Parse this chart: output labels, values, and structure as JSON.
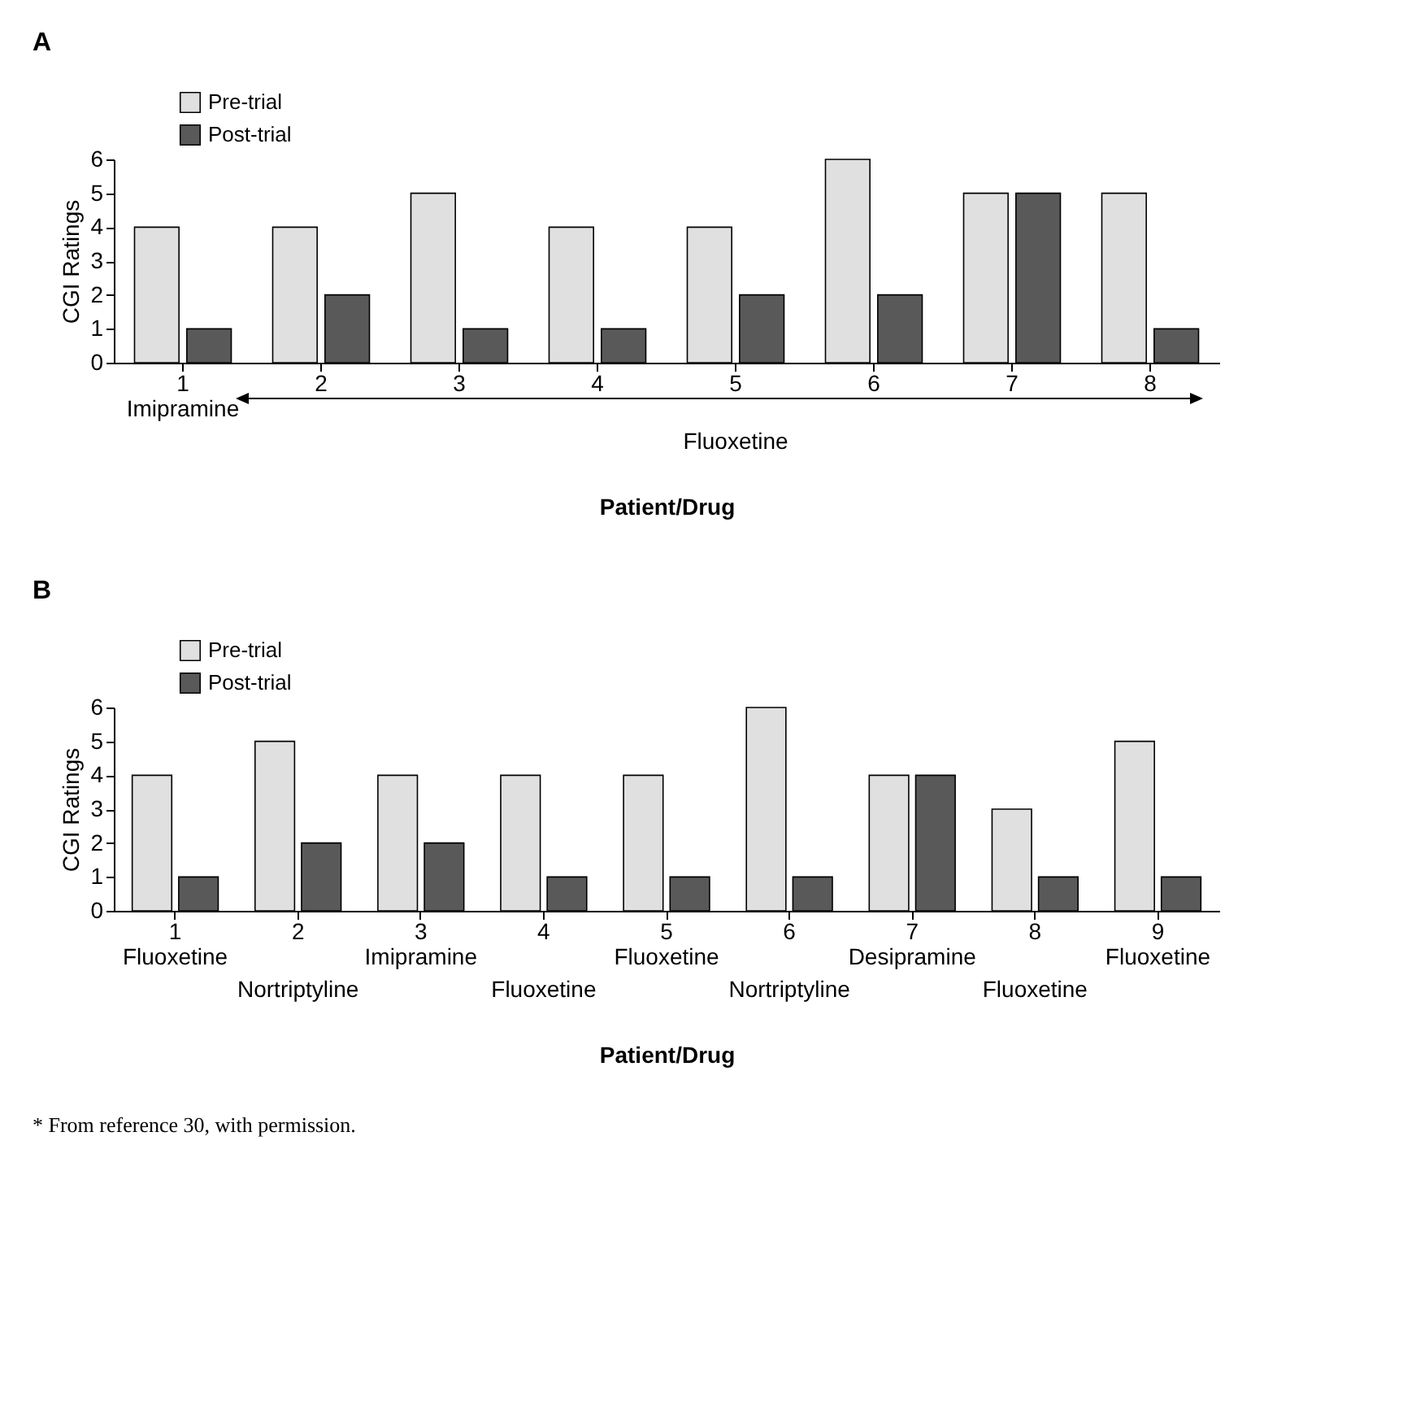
{
  "chart_data": [
    {
      "type": "bar",
      "title": "A",
      "xlabel": "Patient/Drug",
      "ylabel": "CGI Ratings",
      "categories": [
        "1",
        "2",
        "3",
        "4",
        "5",
        "6",
        "7",
        "8"
      ],
      "series": [
        {
          "name": "Pre-trial",
          "color": "#e0e0e0",
          "values": [
            4,
            4,
            5,
            4,
            4,
            6,
            5,
            5
          ]
        },
        {
          "name": "Post-trial",
          "color": "#595959",
          "values": [
            1,
            2,
            1,
            1,
            2,
            2,
            5,
            1
          ]
        }
      ],
      "ylim": [
        0,
        6
      ],
      "yticks": [
        0,
        1,
        2,
        3,
        4,
        5,
        6
      ],
      "legend": "top left",
      "annotations": [
        "Imipramine",
        "Fluoxetine"
      ]
    },
    {
      "type": "bar",
      "title": "B",
      "xlabel": "Patient/Drug",
      "ylabel": "CGI Ratings",
      "categories": [
        "1",
        "2",
        "3",
        "4",
        "5",
        "6",
        "7",
        "8",
        "9"
      ],
      "series": [
        {
          "name": "Pre-trial",
          "color": "#e0e0e0",
          "values": [
            4,
            5,
            4,
            4,
            4,
            6,
            4,
            3,
            5
          ]
        },
        {
          "name": "Post-trial",
          "color": "#595959",
          "values": [
            1,
            2,
            2,
            1,
            1,
            1,
            4,
            1,
            1
          ]
        }
      ],
      "ylim": [
        0,
        6
      ],
      "yticks": [
        0,
        1,
        2,
        3,
        4,
        5,
        6
      ],
      "legend": "top left",
      "annotations": [
        "Fluoxetine",
        "Nortriptyline",
        "Imipramine",
        "Fluoxetine",
        "Fluoxetine",
        "Nortriptyline",
        "Desipramine",
        "Fluoxetine",
        "Fluoxetine",
        "* From reference 30, with permission."
      ]
    }
  ]
}
